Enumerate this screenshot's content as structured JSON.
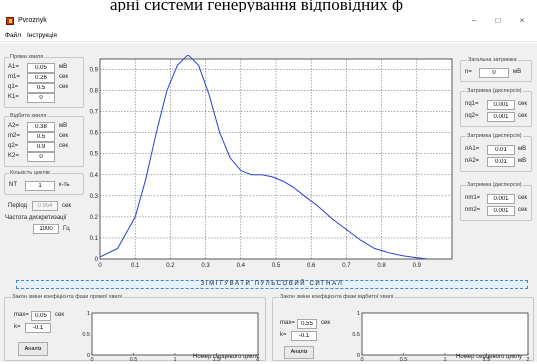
{
  "header_title": "арні системи генерування відповідних ф",
  "window": {
    "title": "Pvroznyk",
    "minimize": "–",
    "maximize": "□",
    "close": "×"
  },
  "menu": {
    "file": "Файл",
    "instruction": "Інструкція"
  },
  "colors": {
    "curve": "#2a3fd3",
    "accent": "#3f86d5"
  },
  "direct_wave": {
    "title": "Пряма хвиля",
    "a1": {
      "label": "A1=",
      "value": "0.05",
      "unit": "мВ"
    },
    "m1": {
      "label": "m1=",
      "value": "0.26",
      "unit": "сек"
    },
    "q1": {
      "label": "q1=",
      "value": "0.5",
      "unit": "сек"
    },
    "k1": {
      "label": "K1=",
      "value": "0"
    }
  },
  "reflected_wave": {
    "title": "Відбита хвиля",
    "a2": {
      "label": "A2=",
      "value": "0.38",
      "unit": "мВ"
    },
    "m2": {
      "label": "m2=",
      "value": "0.5",
      "unit": "сек"
    },
    "q2": {
      "label": "q2=",
      "value": "0.9",
      "unit": "сек"
    },
    "k2": {
      "label": "K2=",
      "value": "0"
    }
  },
  "cycles": {
    "title": "Кількість циклів",
    "label": "NT",
    "value": "1",
    "unit": "к-ть"
  },
  "period": {
    "label": "Період",
    "value": "0.954",
    "unit": "сек"
  },
  "sampling": {
    "label": "Частота дискретизації",
    "value": "1000",
    "unit": "Гц"
  },
  "simulate_button": "ЗІМІТУВАТИ ПУЛЬСОВИЙ СИГНАЛ",
  "general_delay": {
    "title": "Загальна затримка",
    "label": "n=",
    "value": "0",
    "unit": "мВ"
  },
  "delay_dispersion": {
    "title": "Затримка (дисперсія)",
    "nq": {
      "label": "nq1=",
      "value": "0.001",
      "unit": "сек"
    },
    "nq2": {
      "label": "nq2=",
      "value": "0.001",
      "unit": "сек"
    }
  },
  "delay_dispersion_a": {
    "title": "Затримка (дисперсія)",
    "na1": {
      "label": "nA1=",
      "value": "0.01",
      "unit": "мВ"
    },
    "na2": {
      "label": "nA2=",
      "value": "0.01",
      "unit": "мВ"
    }
  },
  "delay_dispersion_m": {
    "title": "Затримка (дисперсія)",
    "nm1": {
      "label": "nm1=",
      "value": "0.001",
      "unit": "сек"
    },
    "nm2": {
      "label": "nm2=",
      "value": "0.001",
      "unit": "сек"
    }
  },
  "phase_direct": {
    "title": "Закон зміни коефіцієнта фази прямої хвилі",
    "max": {
      "label": "max=",
      "value": "0.05",
      "unit": "сек"
    },
    "k": {
      "label": "k=",
      "value": "-0.1"
    },
    "analyze": "Аналіз"
  },
  "phase_reflected": {
    "title": "Закон зміни коефіцієнта фази відбитої хвилі",
    "max": {
      "label": "max=",
      "value": "0.55",
      "unit": "сек"
    },
    "k": {
      "label": "k=",
      "value": "-0.1"
    },
    "analyze": "Аналіз"
  },
  "phase_xlabel": "Номер серцевого циклу",
  "chart_data": [
    {
      "type": "line",
      "title": "",
      "xlabel": "",
      "ylabel": "",
      "xlim": [
        0,
        1
      ],
      "ylim": [
        0,
        0.95
      ],
      "x_ticks": [
        0,
        0.1,
        0.2,
        0.3,
        0.4,
        0.5,
        0.6,
        0.7,
        0.8,
        0.9
      ],
      "y_ticks": [
        0,
        0.1,
        0.2,
        0.3,
        0.4,
        0.5,
        0.6,
        0.7,
        0.8,
        0.9
      ],
      "grid": true,
      "x": [
        0,
        0.05,
        0.1,
        0.13,
        0.16,
        0.19,
        0.22,
        0.25,
        0.28,
        0.31,
        0.34,
        0.37,
        0.4,
        0.43,
        0.46,
        0.49,
        0.52,
        0.55,
        0.58,
        0.62,
        0.66,
        0.7,
        0.74,
        0.78,
        0.82,
        0.86,
        0.9,
        0.93
      ],
      "y": [
        0.01,
        0.05,
        0.2,
        0.38,
        0.6,
        0.8,
        0.92,
        0.97,
        0.92,
        0.78,
        0.6,
        0.48,
        0.42,
        0.4,
        0.4,
        0.39,
        0.37,
        0.34,
        0.3,
        0.25,
        0.19,
        0.14,
        0.09,
        0.05,
        0.03,
        0.015,
        0.006,
        0.0
      ]
    },
    {
      "type": "line",
      "xlabel": "Номер серцевого циклу",
      "xlim": [
        0,
        2
      ],
      "ylim": [
        0,
        1
      ],
      "x_ticks": [
        "0",
        "0.5",
        "1",
        "1.5",
        "2"
      ],
      "y_ticks": [
        "0",
        "0.5",
        "1"
      ],
      "series": []
    },
    {
      "type": "line",
      "xlabel": "Номер серцевого циклу",
      "xlim": [
        0,
        2
      ],
      "ylim": [
        0,
        1
      ],
      "x_ticks": [
        "0",
        "0.5",
        "1",
        "1.5",
        "2"
      ],
      "y_ticks": [
        "0",
        "0.5",
        "1"
      ],
      "series": []
    }
  ]
}
